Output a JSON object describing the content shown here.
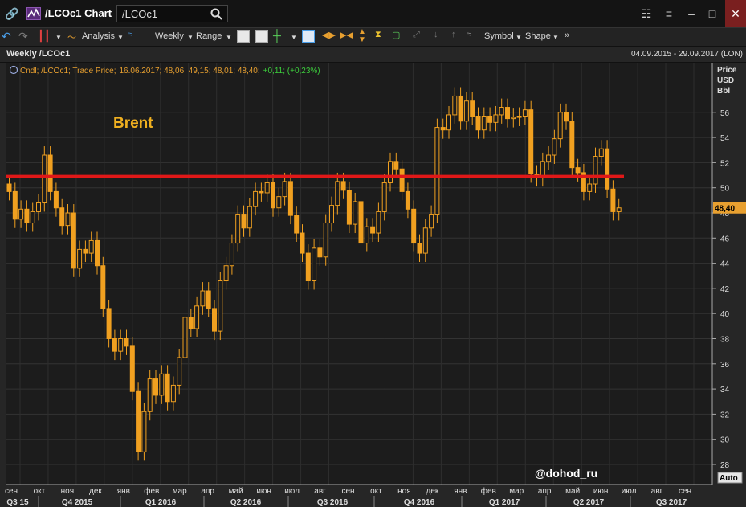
{
  "window": {
    "title": "/LCOc1 Chart",
    "search_value": "/LCOc1"
  },
  "toolbar": {
    "analysis": "Analysis",
    "interval": "Weekly",
    "range": "Range",
    "symbol": "Symbol",
    "shape": "Shape"
  },
  "infobar": {
    "left": "Weekly /LCOc1",
    "right": "04.09.2015 - 29.09.2017 (LON)"
  },
  "chart_data": {
    "type": "candlestick",
    "legend_prefix": "Cndl; /LCOc1; Trade Price;",
    "legend_values": "16.06.2017; 48,06; 49,15; 48,01; 48,40;",
    "legend_change": "+0,11; (+0,23%)",
    "annotation": "Brent",
    "watermark": "@dohod_ru",
    "price_axis_title": [
      "Price",
      "USD",
      "Bbl"
    ],
    "last_price_label": "48,40",
    "auto_label": "Auto",
    "y_ticks": [
      28,
      30,
      32,
      34,
      36,
      38,
      40,
      42,
      44,
      46,
      48,
      50,
      52,
      54,
      56
    ],
    "ylim": [
      26.5,
      58.5
    ],
    "hline": 50.9,
    "month_labels": [
      "сен",
      "окт",
      "ноя",
      "дек",
      "янв",
      "фев",
      "мар",
      "апр",
      "май",
      "июн",
      "июл",
      "авг",
      "сен",
      "окт",
      "ноя",
      "дек",
      "янв",
      "фев",
      "мар",
      "апр",
      "май",
      "июн",
      "июл",
      "авг",
      "сен"
    ],
    "quarter_labels": [
      "Q3 15",
      "Q4 2015",
      "Q1 2016",
      "Q2 2016",
      "Q3 2016",
      "Q4 2016",
      "Q1 2017",
      "Q2 2017",
      "Q3 2017"
    ],
    "close": [
      49.7,
      47.5,
      48.3,
      47.2,
      48.1,
      48.8,
      52.6,
      49.7,
      48.4,
      47.0,
      48.0,
      43.6,
      45.1,
      44.8,
      45.8,
      43.8,
      40.4,
      38.0,
      37.0,
      38.0,
      37.4,
      33.8,
      29.0,
      32.2,
      34.8,
      33.5,
      35.2,
      33.0,
      34.3,
      36.5,
      39.7,
      38.8,
      40.6,
      41.8,
      40.4,
      38.6,
      42.6,
      43.8,
      45.6,
      47.9,
      46.8,
      48.5,
      49.7,
      49.6,
      50.4,
      48.4,
      49.3,
      50.5,
      47.8,
      46.4,
      44.8,
      42.6,
      45.2,
      44.5,
      47.2,
      48.6,
      50.5,
      49.8,
      47.1,
      48.9,
      45.6,
      46.9,
      46.4,
      48.1,
      50.4,
      52.1,
      51.5,
      49.7,
      48.3,
      45.6,
      44.8,
      46.8,
      47.9,
      54.8,
      54.6,
      55.8,
      57.3,
      55.3,
      56.9,
      55.7,
      54.6,
      55.7,
      55.2,
      55.8,
      56.4,
      55.5,
      55.6,
      55.7,
      56.2,
      51.1,
      50.8,
      52.1,
      52.6,
      53.9,
      56.0,
      55.3,
      51.6,
      51.2,
      49.7,
      50.3,
      52.5,
      53.1,
      49.9,
      48.1,
      48.4
    ],
    "x_dates_first_last": [
      "2015-09-04",
      "2017-06-16"
    ]
  }
}
